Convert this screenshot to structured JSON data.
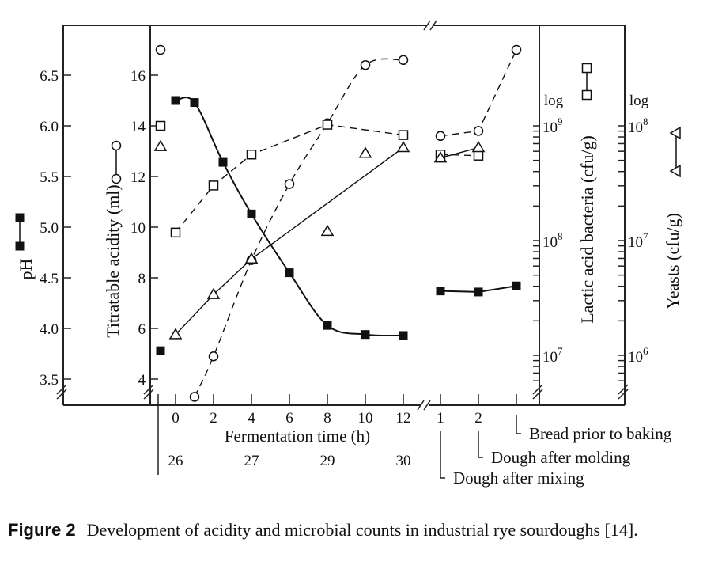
{
  "chart_data": {
    "type": "scatter",
    "title": "",
    "xlabel": "Fermentation time (h)",
    "x_ticks": [
      0,
      2,
      4,
      6,
      8,
      10,
      12
    ],
    "x_stage_ticks": [
      "1",
      "2",
      ""
    ],
    "stages": [
      {
        "id": 1,
        "label": "Dough after mixing"
      },
      {
        "id": 2,
        "label": "Dough after molding"
      },
      {
        "id": 3,
        "label": "Bread prior to baking"
      }
    ],
    "temperature_row": {
      "values": [
        "26",
        "27",
        "29",
        "30"
      ],
      "at_hours": [
        0,
        4,
        8,
        12
      ]
    },
    "axes": {
      "ph": {
        "label": "pH",
        "ticks": [
          "6.5",
          "6.0",
          "5.5",
          "5.0",
          "4.5",
          "4.0",
          "3.5"
        ],
        "range": [
          3.5,
          6.5
        ],
        "legend_marker": "filled-square-solid"
      },
      "acidity": {
        "label": "Titratable acidity (ml)",
        "ticks": [
          "16",
          "14",
          "12",
          "10",
          "8",
          "6",
          "4"
        ],
        "range": [
          4,
          16
        ],
        "legend_marker": "open-circle-dashed"
      },
      "lab": {
        "label": "Lactic acid bacteria (cfu/g)",
        "prefix": "log",
        "ticks": [
          "10^9",
          "10^8",
          "10^7"
        ],
        "tick_labels": [
          {
            "base": "10",
            "exp": "9"
          },
          {
            "base": "10",
            "exp": "8"
          },
          {
            "base": "10",
            "exp": "7"
          }
        ],
        "range_log10": [
          7,
          9
        ],
        "legend_marker": "open-square-dashed"
      },
      "yeast": {
        "label": "Yeasts (cfu/g)",
        "prefix": "log",
        "ticks": [
          "10^8",
          "10^7",
          "10^6"
        ],
        "tick_labels": [
          {
            "base": "10",
            "exp": "8"
          },
          {
            "base": "10",
            "exp": "7"
          },
          {
            "base": "10",
            "exp": "6"
          }
        ],
        "range_log10": [
          6,
          8
        ],
        "legend_marker": "open-triangle-solid"
      }
    },
    "series": [
      {
        "name": "pH",
        "axis": "ph",
        "marker": "filled-square",
        "line": "solid-smooth",
        "start_value": 3.78,
        "fermentation": [
          [
            0,
            6.25
          ],
          [
            1,
            6.23
          ],
          [
            2.5,
            5.64
          ],
          [
            4,
            5.13
          ],
          [
            6,
            4.55
          ],
          [
            8,
            4.03
          ],
          [
            10,
            3.94
          ],
          [
            12,
            3.93
          ]
        ],
        "stages": [
          [
            1,
            4.37
          ],
          [
            2,
            4.36
          ],
          [
            3,
            4.42
          ]
        ]
      },
      {
        "name": "Titratable acidity",
        "axis": "acidity",
        "marker": "open-circle",
        "line": "dashed",
        "start_value": 17.0,
        "fermentation": [
          [
            1,
            3.3
          ],
          [
            2,
            4.9
          ],
          [
            4,
            8.7
          ],
          [
            6,
            11.7
          ],
          [
            8,
            14.1
          ],
          [
            10,
            16.4
          ],
          [
            12,
            16.6
          ]
        ],
        "stages": [
          [
            1,
            13.6
          ],
          [
            2,
            13.8
          ],
          [
            3,
            17.0
          ]
        ]
      },
      {
        "name": "Lactic acid bacteria",
        "axis": "lab",
        "marker": "open-square",
        "line": "dashed",
        "start_value_log10": 9.0,
        "fermentation": [
          [
            0,
            8.07
          ],
          [
            2,
            8.48
          ],
          [
            4,
            8.75
          ],
          [
            8,
            9.01
          ],
          [
            12,
            8.92
          ]
        ],
        "stages": [
          [
            1,
            8.75
          ],
          [
            2,
            8.74
          ]
        ]
      },
      {
        "name": "Yeasts",
        "axis": "yeast",
        "marker": "open-triangle",
        "line": "solid",
        "start_value_log10": 7.82,
        "fermentation": [
          [
            0,
            6.18
          ],
          [
            2,
            6.53
          ],
          [
            4,
            6.84
          ],
          [
            12,
            7.81
          ]
        ],
        "scatter_only": [
          [
            8,
            7.08
          ],
          [
            10,
            7.76
          ]
        ],
        "stages": [
          [
            1,
            7.72
          ],
          [
            2,
            7.81
          ]
        ]
      }
    ]
  },
  "caption": {
    "figure_label": "Figure 2",
    "text": "Development of acidity and microbial counts in industrial rye sourdoughs [14]."
  }
}
